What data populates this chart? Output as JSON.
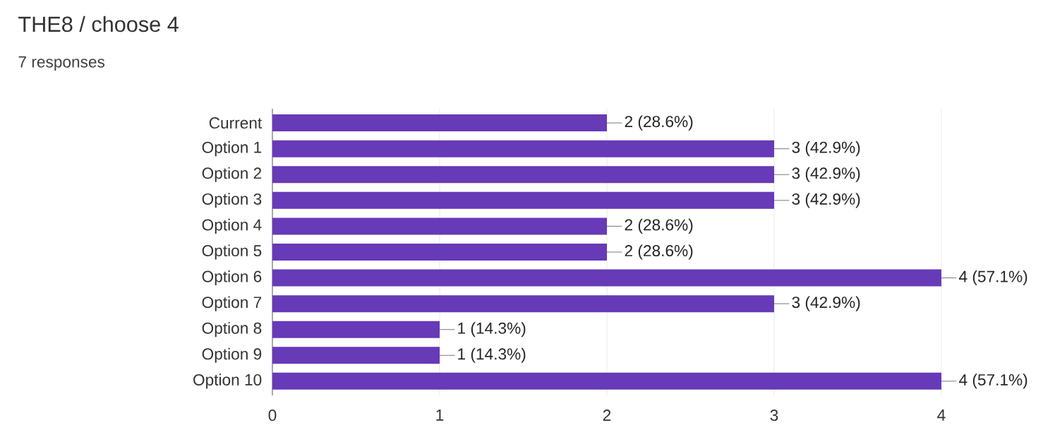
{
  "chart_data": {
    "type": "bar",
    "orientation": "horizontal",
    "title": "THE8 / choose 4",
    "subtitle": "7 responses",
    "categories": [
      "Current",
      "Option 1",
      "Option 2",
      "Option 3",
      "Option 4",
      "Option 5",
      "Option 6",
      "Option 7",
      "Option 8",
      "Option 9",
      "Option 10"
    ],
    "values": [
      2,
      3,
      3,
      3,
      2,
      2,
      4,
      3,
      1,
      1,
      4
    ],
    "value_labels": [
      "2 (28.6%)",
      "3 (42.9%)",
      "3 (42.9%)",
      "3 (42.9%)",
      "2 (28.6%)",
      "2 (28.6%)",
      "4 (57.1%)",
      "3 (42.9%)",
      "1 (14.3%)",
      "1 (14.3%)",
      "4 (57.1%)"
    ],
    "color": "#673ab7",
    "xlim": [
      0,
      4
    ],
    "xticks": [
      0,
      1,
      2,
      3,
      4
    ],
    "grid": "x"
  }
}
